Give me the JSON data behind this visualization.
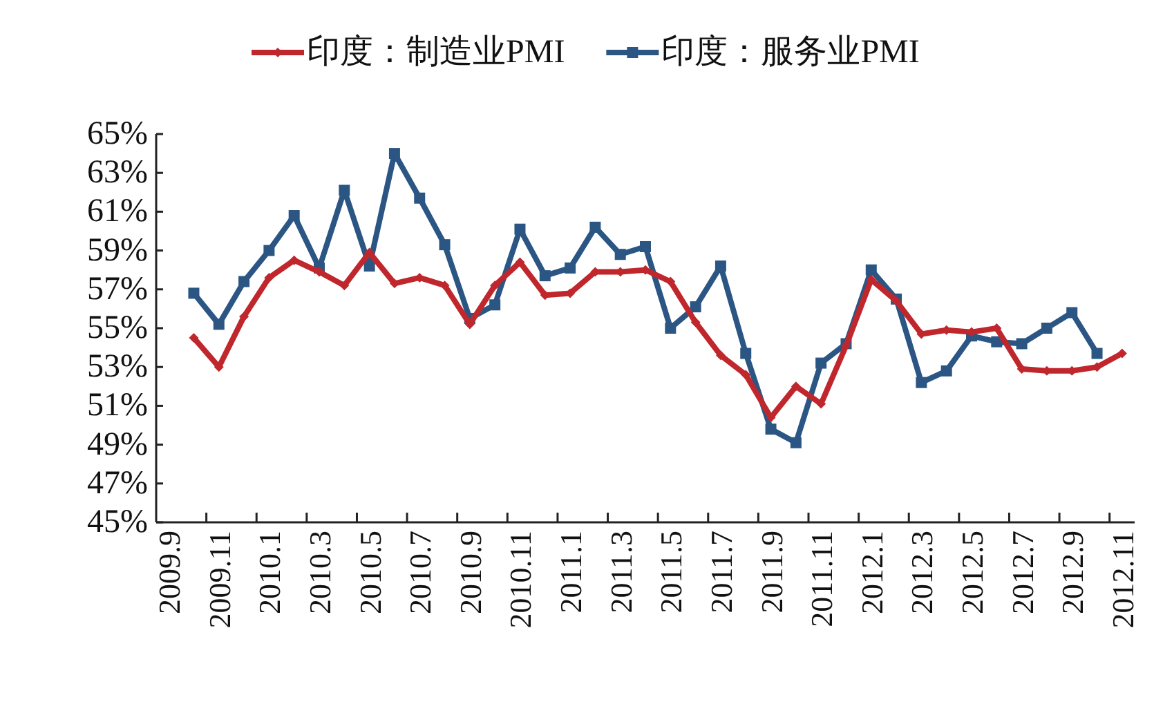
{
  "chart_data": {
    "type": "line",
    "categories": [
      "2009.9",
      null,
      "2009.11",
      null,
      "2010.1",
      null,
      "2010.3",
      null,
      "2010.5",
      null,
      "2010.7",
      null,
      "2010.9",
      null,
      "2010.11",
      null,
      "2011.1",
      null,
      "2011.3",
      null,
      "2011.5",
      null,
      "2011.7",
      null,
      "2011.9",
      null,
      "2011.11",
      null,
      "2012.1",
      null,
      "2012.3",
      null,
      "2012.5",
      null,
      "2012.7",
      null,
      "2012.9",
      null,
      "2012.11"
    ],
    "series": [
      {
        "name": "印度：制造业PMI",
        "color": "#c0272d",
        "marker": "diamond",
        "values": [
          null,
          54.5,
          53.0,
          55.6,
          57.6,
          58.5,
          57.9,
          57.2,
          58.9,
          57.3,
          57.6,
          57.2,
          55.2,
          57.2,
          58.4,
          56.7,
          56.8,
          57.9,
          57.9,
          58.0,
          57.4,
          55.3,
          53.6,
          52.6,
          50.4,
          52.0,
          51.1,
          54.1,
          57.5,
          56.4,
          54.7,
          54.9,
          54.8,
          55.0,
          52.9,
          52.8,
          52.8,
          53.0,
          53.7
        ]
      },
      {
        "name": "印度：服务业PMI",
        "color": "#2b5684",
        "marker": "square",
        "values": [
          null,
          56.8,
          55.2,
          57.4,
          59.0,
          60.8,
          58.1,
          62.1,
          58.2,
          64.0,
          61.7,
          59.3,
          55.5,
          56.2,
          60.1,
          57.7,
          58.1,
          60.2,
          58.8,
          59.2,
          55.0,
          56.1,
          58.2,
          53.7,
          49.8,
          49.1,
          53.2,
          54.2,
          58.0,
          56.5,
          52.2,
          52.8,
          54.6,
          54.3,
          54.2,
          55.0,
          55.8,
          53.7,
          null
        ]
      }
    ],
    "ylim": [
      45,
      65
    ],
    "yticks": [
      {
        "value": 45,
        "label": "45%"
      },
      {
        "value": 47,
        "label": "47%"
      },
      {
        "value": 49,
        "label": "49%"
      },
      {
        "value": 51,
        "label": "51%"
      },
      {
        "value": 53,
        "label": "53%"
      },
      {
        "value": 55,
        "label": "55%"
      },
      {
        "value": 57,
        "label": "57%"
      },
      {
        "value": 59,
        "label": "59%"
      },
      {
        "value": 61,
        "label": "61%"
      },
      {
        "value": 63,
        "label": "63%"
      },
      {
        "value": 65,
        "label": "65%"
      }
    ],
    "grid": false,
    "legend": "top",
    "line_style": "solid"
  }
}
